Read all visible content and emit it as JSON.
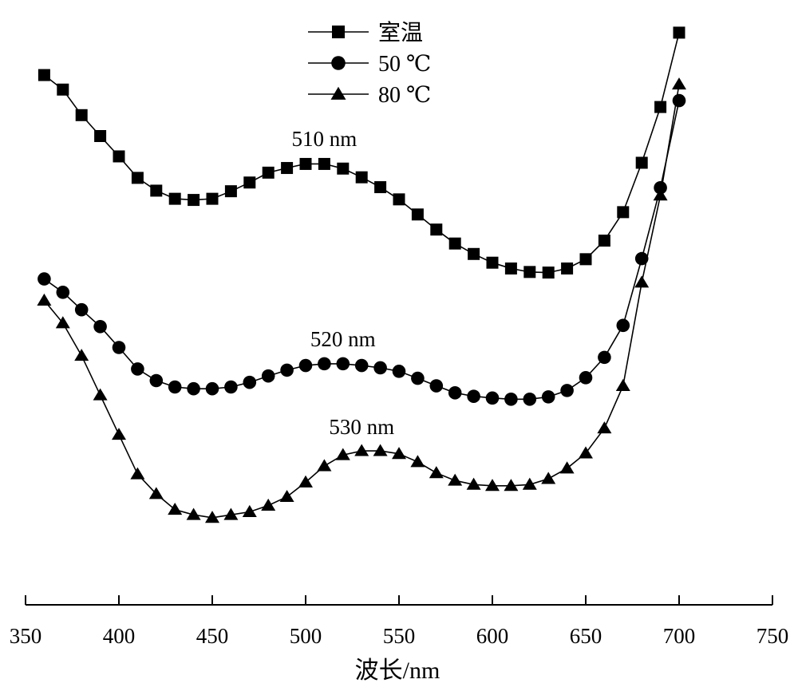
{
  "chart_data": {
    "type": "line",
    "title": "",
    "xlabel": "波长/nm",
    "ylabel": "",
    "xlim": [
      350,
      750
    ],
    "ylim": [
      0,
      1.0
    ],
    "xticks": [
      350,
      400,
      450,
      500,
      550,
      600,
      650,
      700,
      750
    ],
    "grid": false,
    "legend_position": "top-center",
    "x": [
      360,
      370,
      380,
      390,
      400,
      410,
      420,
      430,
      440,
      450,
      460,
      470,
      480,
      490,
      500,
      510,
      520,
      530,
      540,
      550,
      560,
      570,
      580,
      590,
      600,
      610,
      620,
      630,
      640,
      650,
      660,
      670,
      680,
      690,
      700
    ],
    "series": [
      {
        "name": "室温",
        "marker": "square",
        "values": [
          0.912,
          0.887,
          0.843,
          0.807,
          0.772,
          0.735,
          0.713,
          0.699,
          0.697,
          0.699,
          0.712,
          0.727,
          0.744,
          0.752,
          0.759,
          0.759,
          0.751,
          0.736,
          0.719,
          0.698,
          0.672,
          0.646,
          0.622,
          0.604,
          0.589,
          0.579,
          0.573,
          0.572,
          0.579,
          0.595,
          0.627,
          0.676,
          0.761,
          0.857,
          0.985
        ]
      },
      {
        "name": "50 ℃",
        "marker": "circle",
        "values": [
          0.561,
          0.538,
          0.508,
          0.479,
          0.443,
          0.406,
          0.386,
          0.375,
          0.372,
          0.372,
          0.375,
          0.383,
          0.394,
          0.404,
          0.412,
          0.415,
          0.415,
          0.412,
          0.408,
          0.402,
          0.39,
          0.377,
          0.365,
          0.359,
          0.356,
          0.354,
          0.354,
          0.358,
          0.369,
          0.391,
          0.426,
          0.481,
          0.596,
          0.718,
          0.868
        ]
      },
      {
        "name": "80 ℃",
        "marker": "triangle",
        "values": [
          0.524,
          0.485,
          0.429,
          0.361,
          0.293,
          0.225,
          0.191,
          0.164,
          0.155,
          0.15,
          0.155,
          0.16,
          0.171,
          0.186,
          0.211,
          0.239,
          0.258,
          0.265,
          0.265,
          0.26,
          0.246,
          0.227,
          0.214,
          0.207,
          0.205,
          0.205,
          0.207,
          0.217,
          0.235,
          0.261,
          0.304,
          0.377,
          0.555,
          0.705,
          0.896
        ]
      }
    ],
    "annotations": [
      {
        "text": "510 nm",
        "x": 510,
        "y": 0.79
      },
      {
        "text": "520 nm",
        "x": 520,
        "y": 0.445
      },
      {
        "text": "530 nm",
        "x": 530,
        "y": 0.294
      }
    ]
  }
}
